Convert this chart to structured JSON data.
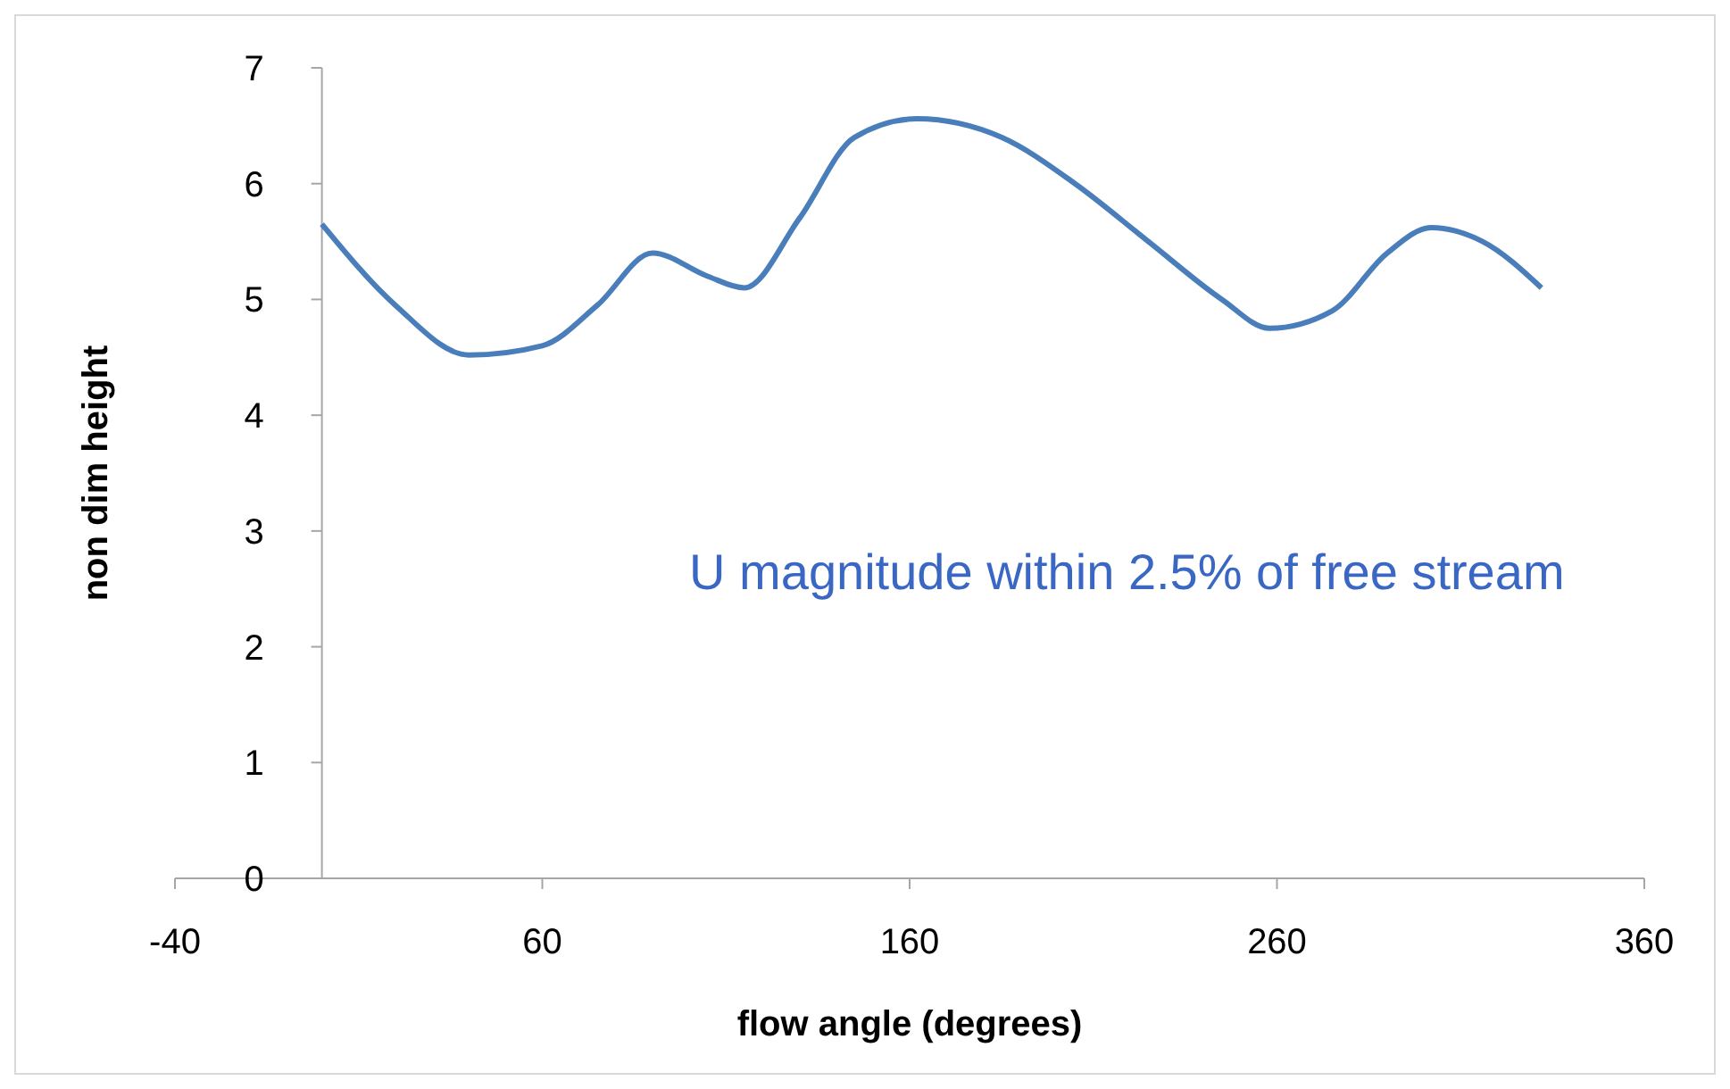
{
  "chart_data": {
    "type": "line",
    "xlabel": "flow angle (degrees)",
    "ylabel": "non dim height",
    "x": [
      0,
      20,
      40,
      60,
      75,
      90,
      105,
      115,
      130,
      145,
      162,
      185,
      205,
      225,
      245,
      258,
      275,
      290,
      302,
      316,
      332
    ],
    "series": [
      {
        "color": "#4a7ebb",
        "values": [
          5.65,
          4.95,
          4.52,
          4.6,
          4.95,
          5.4,
          5.2,
          5.1,
          5.7,
          6.4,
          6.56,
          6.4,
          6.0,
          5.5,
          5.0,
          4.75,
          4.9,
          5.4,
          5.62,
          5.5,
          5.1
        ]
      }
    ],
    "xlim": [
      -40,
      360
    ],
    "xticks": [
      -40,
      60,
      160,
      260,
      360
    ],
    "ylim": [
      0,
      7
    ],
    "yticks": [
      0,
      1,
      2,
      3,
      4,
      5,
      6,
      7
    ],
    "grid": false,
    "marker": "none",
    "line_style": "solid",
    "annotations": [
      {
        "text": "U magnitude within 2.5% of free stream"
      }
    ]
  }
}
